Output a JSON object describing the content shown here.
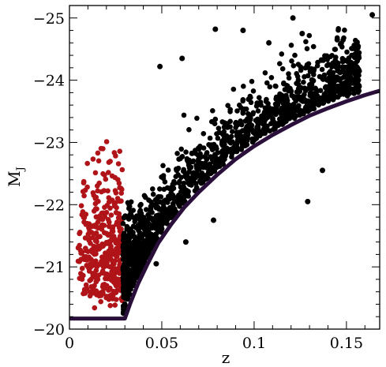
{
  "chart_data": {
    "type": "scatter",
    "title": "",
    "xlabel": "z",
    "ylabel_main": "M",
    "ylabel_sub": "J",
    "xlim": [
      0,
      0.168
    ],
    "ylim": [
      -20,
      -25.2
    ],
    "y_inverted": true,
    "grid": false,
    "x_major_ticks": [
      0,
      0.05,
      0.1,
      0.15
    ],
    "x_tick_labels": [
      "0",
      "0.05",
      "0.1",
      "0.15"
    ],
    "y_major_ticks": [
      -20,
      -21,
      -22,
      -23,
      -24,
      -25
    ],
    "y_tick_labels": [
      "−20",
      "−21",
      "−22",
      "−23",
      "−24",
      "−25"
    ],
    "x_minor_step": 0.01,
    "y_minor_step": 0.2,
    "series": [
      {
        "role": "low-redshift sample",
        "color": "#b01418",
        "x_range": [
          0.004,
          0.029
        ],
        "y_range": [
          -20.2,
          -23.05
        ],
        "n_points": 380
      },
      {
        "role": "main sample",
        "color": "#000000",
        "x_range": [
          0.029,
          0.165
        ],
        "n_points": 1500
      }
    ],
    "limit_curve": {
      "color": "#2a0f3a",
      "points": [
        [
          0.0,
          -20.17
        ],
        [
          0.03,
          -20.17
        ],
        [
          0.033,
          -20.42
        ],
        [
          0.037,
          -20.72
        ],
        [
          0.042,
          -21.03
        ],
        [
          0.048,
          -21.38
        ],
        [
          0.055,
          -21.68
        ],
        [
          0.062,
          -21.95
        ],
        [
          0.07,
          -22.2
        ],
        [
          0.08,
          -22.48
        ],
        [
          0.09,
          -22.73
        ],
        [
          0.1,
          -22.94
        ],
        [
          0.11,
          -23.12
        ],
        [
          0.12,
          -23.28
        ],
        [
          0.13,
          -23.43
        ],
        [
          0.14,
          -23.55
        ],
        [
          0.15,
          -23.66
        ],
        [
          0.16,
          -23.76
        ],
        [
          0.168,
          -23.83
        ]
      ]
    },
    "highlight_points": [
      {
        "x": 0.164,
        "y": -25.05
      },
      {
        "x": 0.121,
        "y": -25.0
      },
      {
        "x": 0.126,
        "y": -24.75
      },
      {
        "x": 0.145,
        "y": -24.65
      },
      {
        "x": 0.079,
        "y": -24.82
      },
      {
        "x": 0.094,
        "y": -24.8
      },
      {
        "x": 0.108,
        "y": -24.6
      },
      {
        "x": 0.049,
        "y": -24.22
      },
      {
        "x": 0.061,
        "y": -24.35
      },
      {
        "x": 0.078,
        "y": -21.75
      },
      {
        "x": 0.063,
        "y": -21.4
      },
      {
        "x": 0.047,
        "y": -21.05
      },
      {
        "x": 0.129,
        "y": -22.05
      },
      {
        "x": 0.137,
        "y": -22.55
      }
    ]
  }
}
